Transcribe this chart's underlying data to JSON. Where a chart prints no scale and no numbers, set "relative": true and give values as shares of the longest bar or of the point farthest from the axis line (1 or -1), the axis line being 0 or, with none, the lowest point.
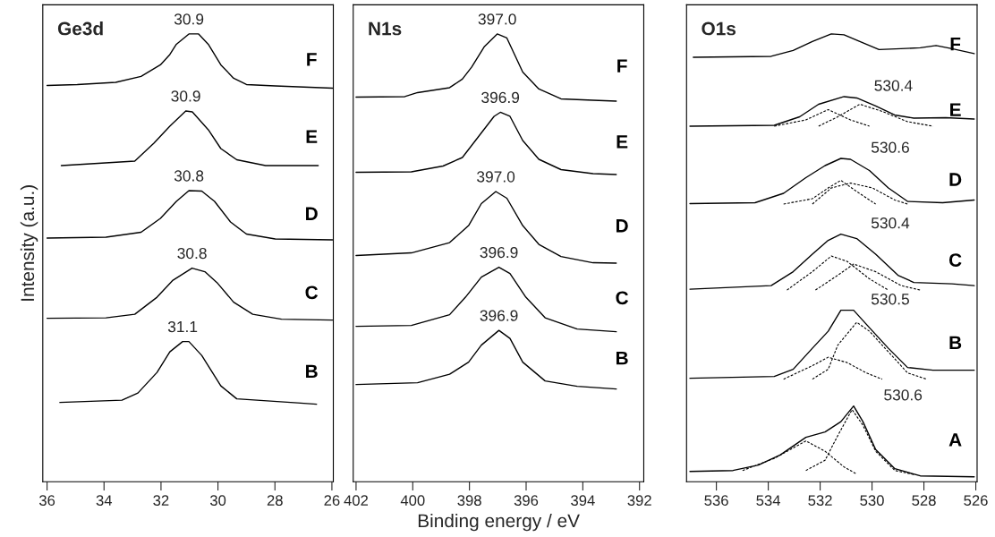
{
  "chart_data": [
    {
      "type": "line",
      "title": "Ge3d",
      "ylabel": "Intensity (a.u.)",
      "relative": true,
      "xlim": [
        36.15,
        25.95
      ],
      "xticks": [
        36,
        34,
        32,
        30,
        28,
        26
      ],
      "series": [
        {
          "name": "F",
          "color": "#000000",
          "x": [
            36.0,
            34.94,
            33.59,
            32.7,
            32.02,
            31.69,
            31.46,
            31.02,
            30.68,
            30.34,
            29.9,
            29.45,
            29.0,
            27.99,
            25.98
          ],
          "values": [
            0.885,
            0.887,
            0.892,
            0.905,
            0.931,
            0.954,
            0.977,
            1.0,
            1.0,
            0.977,
            0.931,
            0.901,
            0.887,
            0.884,
            0.879
          ]
        },
        {
          "name": "E",
          "color": "#000000",
          "x": [
            35.5,
            32.92,
            32.25,
            31.69,
            31.13,
            30.9,
            30.34,
            29.9,
            29.34,
            28.33,
            26.48
          ],
          "values": [
            0.706,
            0.716,
            0.756,
            0.794,
            0.828,
            0.826,
            0.786,
            0.744,
            0.719,
            0.706,
            0.706
          ]
        },
        {
          "name": "D",
          "color": "#000000",
          "x": [
            36.0,
            33.93,
            32.7,
            32.02,
            31.46,
            31.02,
            30.57,
            30.12,
            29.56,
            29.0,
            27.99,
            25.98
          ],
          "values": [
            0.544,
            0.546,
            0.557,
            0.588,
            0.626,
            0.65,
            0.649,
            0.626,
            0.58,
            0.553,
            0.542,
            0.54
          ]
        },
        {
          "name": "C",
          "color": "#000000",
          "x": [
            36.0,
            33.93,
            32.92,
            32.14,
            31.58,
            30.91,
            30.46,
            30.01,
            29.45,
            28.78,
            27.77,
            25.98
          ],
          "values": [
            0.365,
            0.366,
            0.374,
            0.412,
            0.45,
            0.477,
            0.469,
            0.443,
            0.401,
            0.374,
            0.363,
            0.361
          ]
        },
        {
          "name": "B",
          "color": "#000000",
          "x": [
            35.55,
            33.37,
            32.81,
            32.14,
            31.69,
            31.24,
            31.02,
            30.57,
            29.9,
            29.34,
            27.21,
            26.54
          ],
          "values": [
            0.177,
            0.182,
            0.198,
            0.244,
            0.29,
            0.313,
            0.313,
            0.282,
            0.214,
            0.185,
            0.176,
            0.173
          ]
        }
      ],
      "annotations": [
        "30.9",
        "30.9",
        "30.8",
        "30.8",
        "31.1"
      ]
    },
    {
      "type": "line",
      "title": "N1s",
      "xlabel": "Binding energy / eV",
      "relative": true,
      "xlim": [
        402.1,
        391.85
      ],
      "xticks": [
        402,
        400,
        398,
        396,
        394,
        392
      ],
      "series": [
        {
          "name": "F",
          "color": "#000000",
          "x": [
            402.0,
            400.28,
            399.83,
            398.7,
            398.25,
            397.92,
            397.47,
            397.02,
            396.68,
            396.12,
            395.55,
            394.77,
            393.64,
            392.82
          ],
          "values": [
            0.859,
            0.86,
            0.869,
            0.88,
            0.899,
            0.926,
            0.972,
            1.0,
            0.991,
            0.915,
            0.877,
            0.855,
            0.852,
            0.85
          ]
        },
        {
          "name": "E",
          "color": "#000000",
          "x": [
            402.0,
            400.05,
            398.93,
            398.25,
            397.69,
            397.13,
            396.91,
            396.57,
            396.12,
            395.55,
            394.77,
            393.64,
            392.82
          ],
          "values": [
            0.691,
            0.692,
            0.705,
            0.724,
            0.77,
            0.816,
            0.825,
            0.816,
            0.762,
            0.72,
            0.697,
            0.688,
            0.686
          ]
        },
        {
          "name": "D",
          "color": "#000000",
          "x": [
            402.0,
            400.05,
            398.7,
            398.03,
            397.58,
            397.07,
            396.68,
            396.12,
            395.55,
            394.77,
            393.64,
            392.82
          ],
          "values": [
            0.505,
            0.511,
            0.534,
            0.572,
            0.621,
            0.648,
            0.633,
            0.572,
            0.53,
            0.503,
            0.489,
            0.488
          ]
        },
        {
          "name": "C",
          "color": "#000000",
          "x": [
            402.0,
            400.05,
            398.7,
            398.14,
            397.58,
            396.96,
            396.57,
            396.01,
            395.33,
            394.2,
            392.82
          ],
          "values": [
            0.347,
            0.349,
            0.373,
            0.412,
            0.457,
            0.479,
            0.465,
            0.412,
            0.366,
            0.341,
            0.335
          ]
        },
        {
          "name": "B",
          "color": "#000000",
          "x": [
            402.0,
            399.83,
            398.7,
            398.03,
            397.58,
            396.96,
            396.57,
            396.12,
            395.33,
            394.2,
            392.82
          ],
          "values": [
            0.217,
            0.221,
            0.24,
            0.267,
            0.305,
            0.338,
            0.32,
            0.267,
            0.225,
            0.213,
            0.207
          ]
        }
      ],
      "annotations": [
        "397.0",
        "396.9",
        "397.0",
        "396.9",
        "396.9"
      ]
    },
    {
      "type": "line",
      "title": "O1s",
      "relative": true,
      "xlim": [
        537.15,
        525.95
      ],
      "xticks": [
        536,
        534,
        532,
        530,
        528,
        526
      ],
      "series": [
        {
          "name": "F",
          "color": "#000000",
          "x": [
            536.89,
            533.89,
            533.04,
            532.3,
            531.57,
            531.08,
            530.47,
            529.73,
            528.88,
            528.14,
            527.53,
            526.92,
            526.06
          ],
          "values": [
            0.948,
            0.95,
            0.963,
            0.983,
            1.0,
            0.998,
            0.983,
            0.965,
            0.967,
            0.969,
            0.974,
            0.967,
            0.956
          ]
        },
        {
          "name": "E",
          "color": "#000000",
          "x": [
            537.02,
            533.77,
            532.79,
            532.06,
            531.08,
            530.59,
            529.86,
            529.13,
            528.39,
            527.16,
            526.06
          ],
          "values": [
            0.794,
            0.796,
            0.815,
            0.843,
            0.86,
            0.857,
            0.839,
            0.819,
            0.812,
            0.813,
            0.81
          ]
        },
        {
          "color": "#000000",
          "line_style": "dashed",
          "x": [
            533.77,
            532.55,
            531.69,
            530.83,
            530.1
          ],
          "values": [
            0.794,
            0.808,
            0.831,
            0.808,
            0.794
          ]
        },
        {
          "color": "#000000",
          "line_style": "dashed",
          "x": [
            532.06,
            531.32,
            530.47,
            529.61,
            528.63,
            527.65
          ],
          "values": [
            0.794,
            0.815,
            0.843,
            0.827,
            0.804,
            0.794
          ]
        },
        {
          "name": "D",
          "color": "#000000",
          "x": [
            537.02,
            534.51,
            533.41,
            532.55,
            531.81,
            531.2,
            530.83,
            530.1,
            529.37,
            528.63,
            527.28,
            526.06
          ],
          "values": [
            0.621,
            0.623,
            0.644,
            0.679,
            0.706,
            0.722,
            0.72,
            0.695,
            0.656,
            0.626,
            0.623,
            0.629
          ]
        },
        {
          "color": "#000000",
          "line_style": "dashed",
          "x": [
            533.41,
            532.3,
            531.69,
            531.2,
            530.59,
            529.86
          ],
          "values": [
            0.62,
            0.632,
            0.656,
            0.673,
            0.648,
            0.62
          ]
        },
        {
          "color": "#000000",
          "line_style": "dashed",
          "x": [
            532.3,
            531.57,
            530.83,
            529.98,
            529.12,
            528.63
          ],
          "values": [
            0.62,
            0.656,
            0.667,
            0.656,
            0.629,
            0.62
          ]
        },
        {
          "name": "C",
          "color": "#000000",
          "x": [
            537.02,
            533.89,
            533.04,
            532.3,
            531.69,
            531.2,
            530.59,
            529.86,
            529.0,
            528.39,
            526.92,
            526.06
          ],
          "values": [
            0.43,
            0.438,
            0.469,
            0.508,
            0.539,
            0.553,
            0.543,
            0.508,
            0.461,
            0.445,
            0.442,
            0.438
          ]
        },
        {
          "color": "#000000",
          "line_style": "dashed",
          "x": [
            533.28,
            532.3,
            531.57,
            530.96,
            530.1,
            529.37
          ],
          "values": [
            0.428,
            0.469,
            0.504,
            0.492,
            0.453,
            0.428
          ]
        },
        {
          "color": "#000000",
          "line_style": "dashed",
          "x": [
            532.18,
            531.32,
            530.71,
            529.86,
            528.88,
            528.14
          ],
          "values": [
            0.428,
            0.461,
            0.486,
            0.469,
            0.438,
            0.428
          ]
        },
        {
          "name": "B",
          "color": "#000000",
          "x": [
            537.02,
            533.77,
            533.04,
            532.3,
            531.69,
            531.2,
            530.71,
            530.1,
            529.37,
            528.63,
            527.65,
            526.06
          ],
          "values": [
            0.231,
            0.235,
            0.251,
            0.298,
            0.336,
            0.383,
            0.383,
            0.344,
            0.298,
            0.255,
            0.249,
            0.249
          ]
        },
        {
          "color": "#000000",
          "line_style": "dashed",
          "x": [
            533.41,
            532.3,
            531.69,
            530.96,
            530.22,
            529.61
          ],
          "values": [
            0.229,
            0.259,
            0.278,
            0.266,
            0.243,
            0.229
          ]
        },
        {
          "color": "#000000",
          "line_style": "dashed",
          "x": [
            532.3,
            531.69,
            531.32,
            530.59,
            530.1,
            529.37,
            528.63,
            527.9
          ],
          "values": [
            0.229,
            0.251,
            0.305,
            0.356,
            0.336,
            0.29,
            0.243,
            0.229
          ]
        },
        {
          "name": "A",
          "color": "#000000",
          "x": [
            537.02,
            535.36,
            534.38,
            533.53,
            532.55,
            531.81,
            531.2,
            530.71,
            530.35,
            529.86,
            529.12,
            528.14,
            526.06
          ],
          "values": [
            0.023,
            0.025,
            0.037,
            0.06,
            0.099,
            0.111,
            0.134,
            0.169,
            0.134,
            0.072,
            0.029,
            0.013,
            0.011
          ]
        },
        {
          "color": "#000000",
          "line_style": "dashed",
          "x": [
            534.99,
            533.77,
            532.55,
            531.81,
            531.08,
            530.59
          ],
          "values": [
            0.025,
            0.052,
            0.091,
            0.068,
            0.033,
            0.017
          ]
        },
        {
          "color": "#000000",
          "line_style": "dashed",
          "x": [
            532.55,
            531.81,
            531.32,
            530.77,
            530.35,
            529.86,
            529.12,
            528.39
          ],
          "values": [
            0.025,
            0.048,
            0.103,
            0.161,
            0.126,
            0.068,
            0.025,
            0.016
          ]
        }
      ],
      "annotations": [
        "530.4",
        "530.6",
        "530.4",
        "530.5",
        "530.6"
      ]
    }
  ]
}
